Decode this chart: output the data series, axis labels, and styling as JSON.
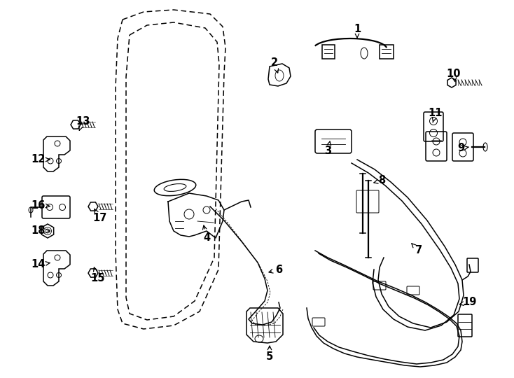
{
  "bg_color": "#ffffff",
  "line_color": "#000000",
  "figsize": [
    7.34,
    5.4
  ],
  "dpi": 100,
  "door_outer": {
    "x": [
      163,
      195,
      240,
      295,
      315,
      320,
      318,
      308,
      280,
      240,
      195,
      163,
      158,
      155,
      155,
      158,
      163
    ],
    "y": [
      25,
      15,
      12,
      18,
      35,
      65,
      95,
      380,
      440,
      462,
      468,
      460,
      440,
      350,
      130,
      55,
      25
    ]
  },
  "door_inner": {
    "x": [
      180,
      200,
      240,
      285,
      305,
      308,
      300,
      275,
      240,
      200,
      180,
      177,
      177,
      180
    ],
    "y": [
      45,
      32,
      28,
      35,
      55,
      90,
      360,
      425,
      450,
      455,
      445,
      420,
      100,
      45
    ]
  }
}
